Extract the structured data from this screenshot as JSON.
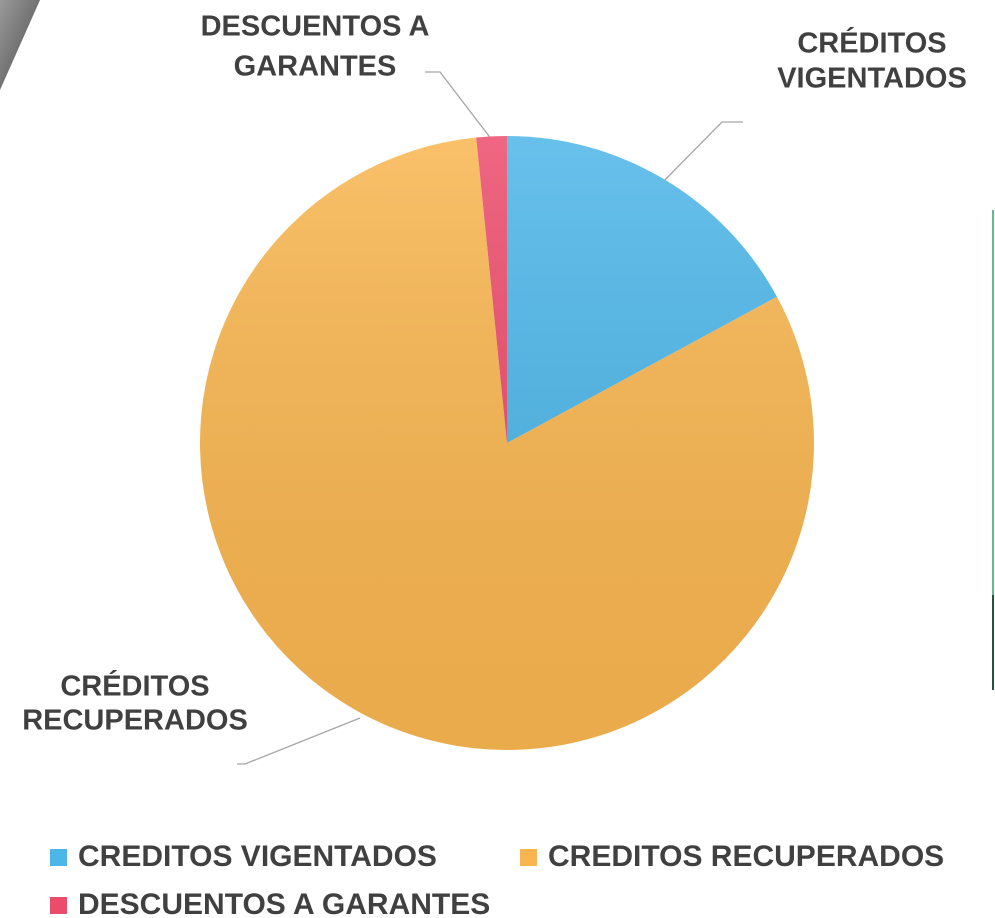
{
  "chart_data": {
    "type": "pie",
    "categories": [
      "CREDITOS VIGENTADOS",
      "CREDITOS RECUPERADOS",
      "DESCUENTOS A GARANTES"
    ],
    "values": [
      17.1,
      81.3,
      1.6
    ],
    "colors": [
      "#4db6e8",
      "#f9b650",
      "#ec4c6c"
    ],
    "data_labels": [
      [
        "CRÉDITOS",
        "VIGENTADOS"
      ],
      [
        "CRÉDITOS",
        "RECUPERADOS"
      ],
      [
        "DESCUENTOS A",
        "GARANTES"
      ]
    ],
    "legend": "bottom"
  }
}
